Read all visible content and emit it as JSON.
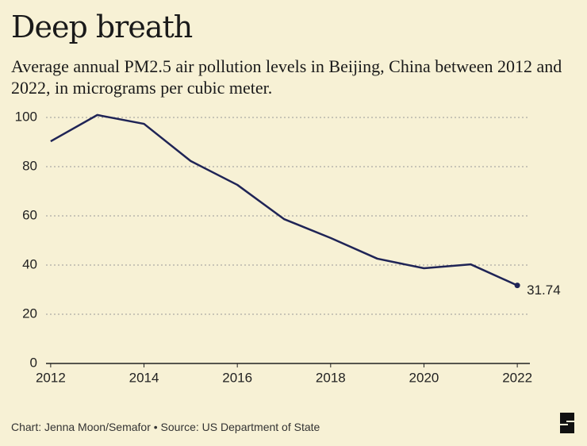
{
  "chart_data": {
    "type": "line",
    "title": "Deep breath",
    "subtitle": "Average annual PM2.5 air pollution levels in Beijing, China between 2012 and 2022, in micrograms per cubic meter.",
    "source": "Chart: Jenna Moon/Semafor • Source: US Department of State",
    "x": [
      2012,
      2013,
      2014,
      2015,
      2016,
      2017,
      2018,
      2019,
      2020,
      2021,
      2022
    ],
    "series": [
      {
        "name": "PM2.5",
        "color": "#1f2456",
        "values": [
          90.3,
          101,
          97.4,
          82.3,
          72.6,
          58.7,
          51,
          42.6,
          38.7,
          40.3,
          31.74
        ]
      }
    ],
    "xlim": [
      2011.9,
      2022.27
    ],
    "xticks": [
      2012,
      2014,
      2016,
      2018,
      2020,
      2022
    ],
    "ylim": [
      0,
      100
    ],
    "yticks": [
      0,
      20,
      40,
      60,
      80,
      100
    ],
    "grid": true
  }
}
